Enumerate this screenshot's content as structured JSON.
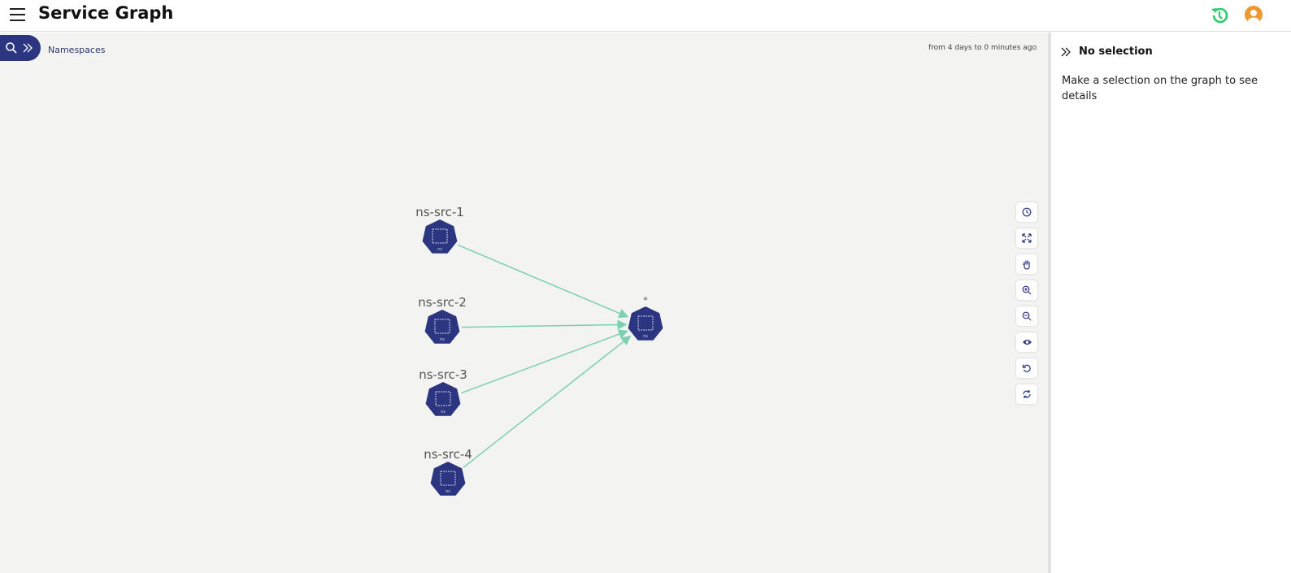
{
  "header": {
    "title": "Service Graph",
    "icons": [
      "menu-icon",
      "history-icon",
      "user-avatar-icon"
    ],
    "history_color": "#2ecc71",
    "avatar_color": "#ee9a33"
  },
  "toolbar": {
    "namespaces_label": "Namespaces",
    "time_range": "from 4 days to 0 minutes ago",
    "icons": [
      "search-icon",
      "double-chevron-right-icon"
    ]
  },
  "graph": {
    "node_color": "#2c3680",
    "edge_color": "#7ccfb0",
    "nodes": [
      {
        "id": "ns-src-1",
        "label": "ns-src-1",
        "type": "ns"
      },
      {
        "id": "ns-src-2",
        "label": "ns-src-2",
        "type": "ns"
      },
      {
        "id": "ns-src-3",
        "label": "ns-src-3",
        "type": "ns"
      },
      {
        "id": "ns-src-4",
        "label": "ns-src-4",
        "type": "ns"
      },
      {
        "id": "target",
        "label": "*",
        "type": "ns"
      }
    ],
    "edges": [
      [
        "ns-src-1",
        "target"
      ],
      [
        "ns-src-2",
        "target"
      ],
      [
        "ns-src-3",
        "target"
      ],
      [
        "ns-src-4",
        "target"
      ]
    ]
  },
  "controls": [
    "clock-icon",
    "fit-screen-icon",
    "pan-hand-icon",
    "zoom-in-icon",
    "zoom-out-icon",
    "eye-icon",
    "reset-icon",
    "refresh-icon"
  ],
  "panel": {
    "title": "No selection",
    "text": "Make a selection on the graph to see details"
  }
}
